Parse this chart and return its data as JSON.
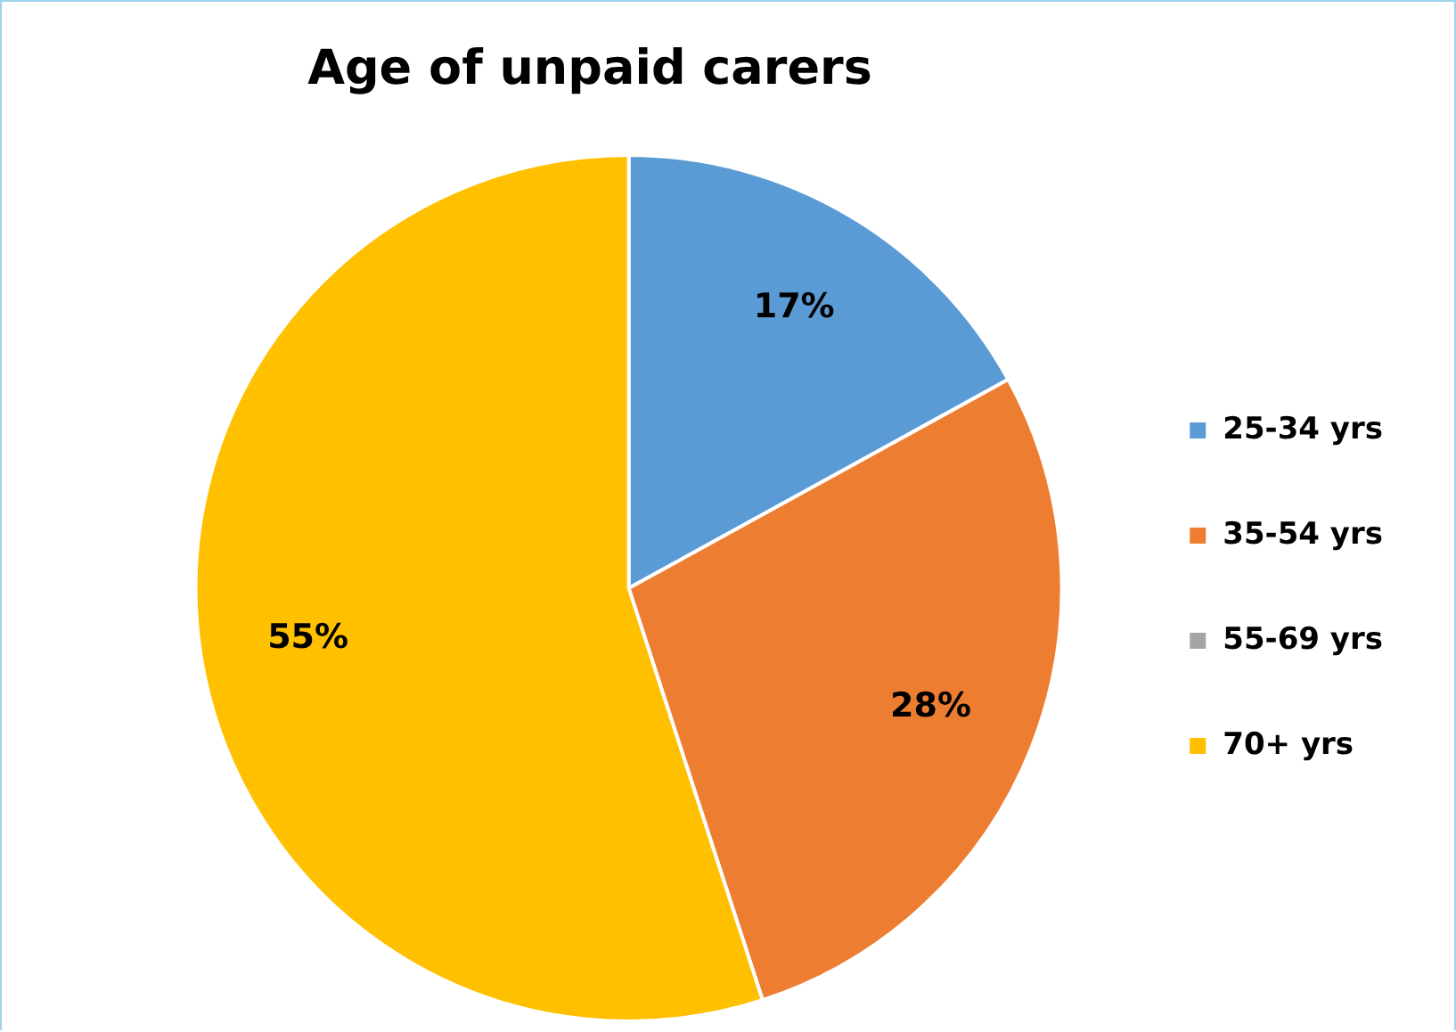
{
  "chart_data": {
    "type": "pie",
    "title": "Age of unpaid carers",
    "categories": [
      "25-34 yrs",
      "35-54 yrs",
      "55-69 yrs",
      "70+ yrs"
    ],
    "values": [
      17,
      28,
      0,
      55
    ],
    "colors": [
      "#5b9bd5",
      "#ed7d31",
      "#a5a5a5",
      "#ffc000"
    ],
    "value_labels": [
      "17%",
      "28%",
      null,
      "55%"
    ],
    "legend": "right"
  }
}
